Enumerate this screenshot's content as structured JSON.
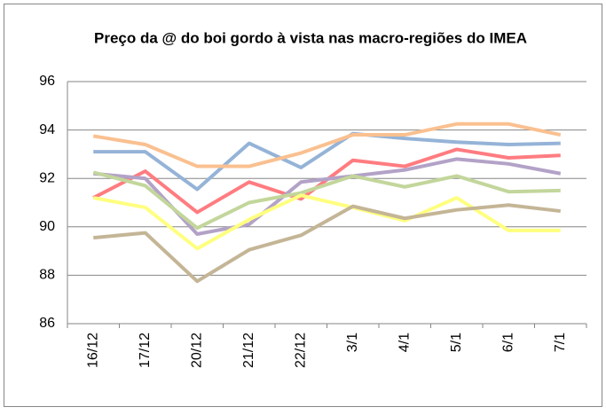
{
  "chart_data": {
    "type": "line",
    "title": "Preço da @ do boi gordo à vista nas macro-regiões do IMEA",
    "categories": [
      "16/12",
      "17/12",
      "20/12",
      "21/12",
      "22/12",
      "3/1",
      "4/1",
      "5/1",
      "6/1",
      "7/1"
    ],
    "series": [
      {
        "color": "#95b3d7",
        "values": [
          93.1,
          93.1,
          91.55,
          93.45,
          92.45,
          93.85,
          93.65,
          93.5,
          93.4,
          93.45
        ]
      },
      {
        "color": "#fac090",
        "values": [
          93.75,
          93.4,
          92.5,
          92.5,
          93.05,
          93.8,
          93.8,
          94.25,
          94.25,
          93.8
        ]
      },
      {
        "color": "#ff7c80",
        "values": [
          91.2,
          92.3,
          90.6,
          91.85,
          91.15,
          92.75,
          92.5,
          93.2,
          92.85,
          92.95
        ]
      },
      {
        "color": "#b3a2c7",
        "values": [
          92.2,
          92.0,
          89.7,
          90.1,
          91.85,
          92.1,
          92.35,
          92.8,
          92.6,
          92.2
        ]
      },
      {
        "color": "#c3d69b",
        "values": [
          92.25,
          91.7,
          89.95,
          91.0,
          91.4,
          92.1,
          91.65,
          92.1,
          91.45,
          91.5
        ]
      },
      {
        "color": "#ffff7f",
        "values": [
          91.2,
          90.8,
          89.1,
          90.3,
          91.3,
          90.8,
          90.25,
          91.2,
          89.85,
          89.85
        ]
      },
      {
        "color": "#c4b596",
        "values": [
          89.55,
          89.75,
          87.75,
          89.05,
          89.65,
          90.85,
          90.35,
          90.7,
          90.9,
          90.65
        ]
      }
    ],
    "ylim": [
      86,
      96
    ],
    "yticks": [
      86,
      88,
      90,
      92,
      94,
      96
    ],
    "grid": true
  }
}
